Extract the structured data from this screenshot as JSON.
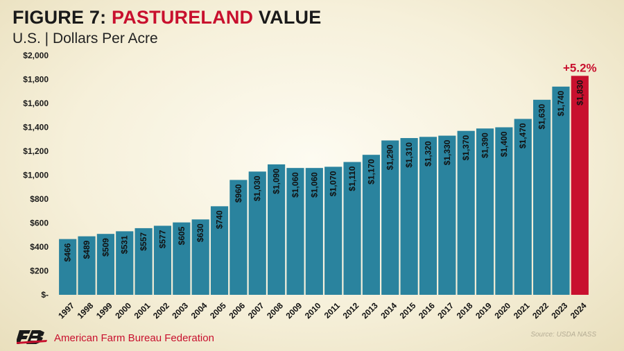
{
  "header": {
    "title_prefix": "FIGURE 7: ",
    "title_highlight": "PASTURELAND",
    "title_suffix": " VALUE",
    "subtitle": "U.S. | Dollars Per Acre"
  },
  "footer": {
    "org_name": "American Farm Bureau Federation",
    "source": "Source: USDA NASS"
  },
  "colors": {
    "bar": "#2a839e",
    "highlight_bar": "#c8102e",
    "highlight_text": "#c8102e"
  },
  "chart_data": {
    "type": "bar",
    "title": "FIGURE 7: PASTURELAND VALUE",
    "subtitle": "U.S. | Dollars Per Acre",
    "categories": [
      "1997",
      "1998",
      "1999",
      "2000",
      "2001",
      "2002",
      "2003",
      "2004",
      "2005",
      "2006",
      "2007",
      "2008",
      "2009",
      "2010",
      "2011",
      "2012",
      "2013",
      "2014",
      "2015",
      "2016",
      "2017",
      "2018",
      "2019",
      "2020",
      "2021",
      "2022",
      "2023",
      "2024"
    ],
    "values": [
      466,
      489,
      509,
      531,
      557,
      577,
      605,
      630,
      740,
      960,
      1030,
      1090,
      1060,
      1060,
      1070,
      1110,
      1170,
      1290,
      1310,
      1320,
      1330,
      1370,
      1390,
      1400,
      1470,
      1630,
      1740,
      1830
    ],
    "data_labels": [
      "$466",
      "$489",
      "$509",
      "$531",
      "$557",
      "$577",
      "$605",
      "$630",
      "$740",
      "$960",
      "$1,030",
      "$1,090",
      "$1,060",
      "$1,060",
      "$1,070",
      "$1,110",
      "$1,170",
      "$1,290",
      "$1,310",
      "$1,320",
      "$1,330",
      "$1,370",
      "$1,390",
      "$1,400",
      "$1,470",
      "$1,630",
      "$1,740",
      "$1,830"
    ],
    "ylim": [
      0,
      2000
    ],
    "yticks": [
      0,
      200,
      400,
      600,
      800,
      1000,
      1200,
      1400,
      1600,
      1800,
      2000
    ],
    "ytick_labels": [
      "$-",
      "$200",
      "$400",
      "$600",
      "$800",
      "$1,000",
      "$1,200",
      "$1,400",
      "$1,600",
      "$1,800",
      "$2,000"
    ],
    "highlight_category": "2024",
    "annotation": "+5.2%",
    "grid": false,
    "legend": "none"
  }
}
